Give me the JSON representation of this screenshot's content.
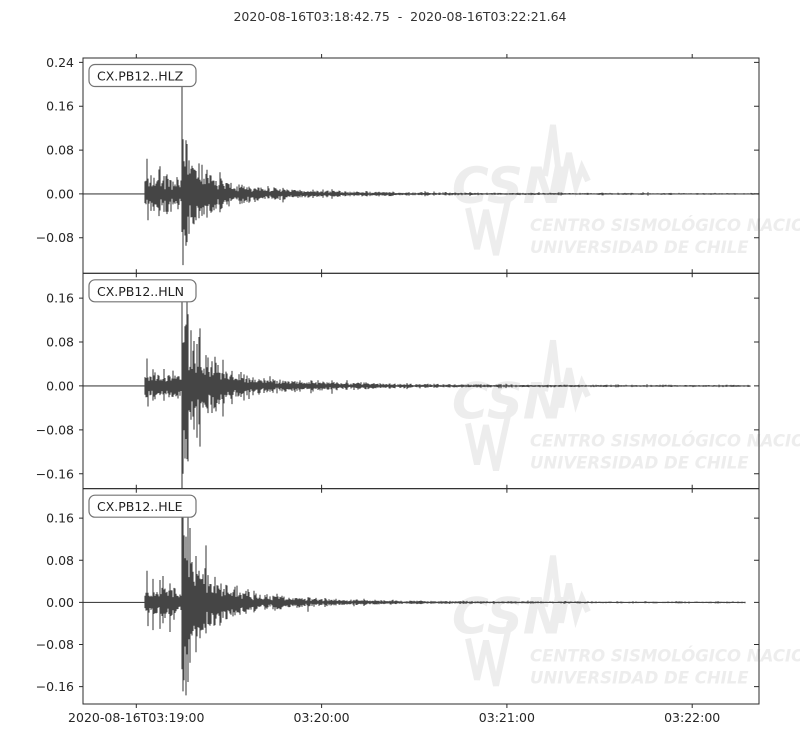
{
  "title": "2020-08-16T03:18:42.75  -  2020-08-16T03:22:21.64",
  "colors": {
    "background": "#ffffff",
    "trace": "#454545",
    "frame": "#2b2b2b",
    "tick_label": "#262626",
    "label_box_border": "#737373",
    "label_box_fill": "#ffffff",
    "watermark": "#ededed"
  },
  "watermark": {
    "logo_text": "CSN",
    "line1": "CENTRO SISMOLÓGICO NACIONAL",
    "line2": "UNIVERSIDAD DE CHILE"
  },
  "chart_data": {
    "type": "line",
    "title": "2020-08-16T03:18:42.75  -  2020-08-16T03:22:21.64",
    "time_start": "2020-08-16T03:18:42.75",
    "time_end": "2020-08-16T03:22:21.64",
    "duration_s": 218.89,
    "grid": false,
    "xticks": [
      {
        "t": 17.25,
        "label": "2020-08-16T03:19:00"
      },
      {
        "t": 77.25,
        "label": "03:20:00"
      },
      {
        "t": 137.25,
        "label": "03:21:00"
      },
      {
        "t": 197.25,
        "label": "03:22:00"
      }
    ],
    "panels": [
      {
        "label": "CX.PB12..HLZ",
        "ylim": [
          -0.145,
          0.248
        ],
        "yticks": [
          {
            "v": 0.24,
            "label": "0.24"
          },
          {
            "v": 0.16,
            "label": "0.16"
          },
          {
            "v": 0.08,
            "label": "0.08"
          },
          {
            "v": 0.0,
            "label": "0.00"
          },
          {
            "v": -0.08,
            "label": "−0.08"
          }
        ],
        "onset_t": 20.1,
        "first_spike": 0.064,
        "peak_t": 32.0,
        "peak_up": 0.199,
        "peak_down": -0.13,
        "onset_amp": 0.022,
        "coda_amp": 0.055,
        "coda_amp2": 0.022,
        "tail_amp": 0.0013,
        "end_t": 218.89,
        "seed": 3
      },
      {
        "label": "CX.PB12..HLN",
        "ylim": [
          -0.187,
          0.205
        ],
        "yticks": [
          {
            "v": 0.16,
            "label": "0.16"
          },
          {
            "v": 0.08,
            "label": "0.08"
          },
          {
            "v": 0.0,
            "label": "0.00"
          },
          {
            "v": -0.08,
            "label": "−0.08"
          },
          {
            "v": -0.16,
            "label": "−0.16"
          }
        ],
        "onset_t": 20.1,
        "first_spike": 0.05,
        "peak_t": 32.0,
        "peak_up": 0.153,
        "peak_down": -0.16,
        "onset_amp": 0.017,
        "coda_amp": 0.085,
        "coda_amp2": 0.03,
        "tail_amp": 0.0015,
        "end_t": 216.0,
        "seed": 11
      },
      {
        "label": "CX.PB12..HLE",
        "ylim": [
          -0.193,
          0.216
        ],
        "yticks": [
          {
            "v": 0.16,
            "label": "0.16"
          },
          {
            "v": 0.08,
            "label": "0.08"
          },
          {
            "v": 0.0,
            "label": "0.00"
          },
          {
            "v": -0.08,
            "label": "−0.08"
          },
          {
            "v": -0.16,
            "label": "−0.16"
          }
        ],
        "onset_t": 20.1,
        "first_spike": 0.06,
        "peak_t": 32.0,
        "peak_up": 0.168,
        "peak_down": -0.169,
        "onset_amp": 0.021,
        "coda_amp": 0.082,
        "coda_amp2": 0.028,
        "tail_amp": 0.0014,
        "end_t": 214.4,
        "seed": 7
      }
    ]
  }
}
